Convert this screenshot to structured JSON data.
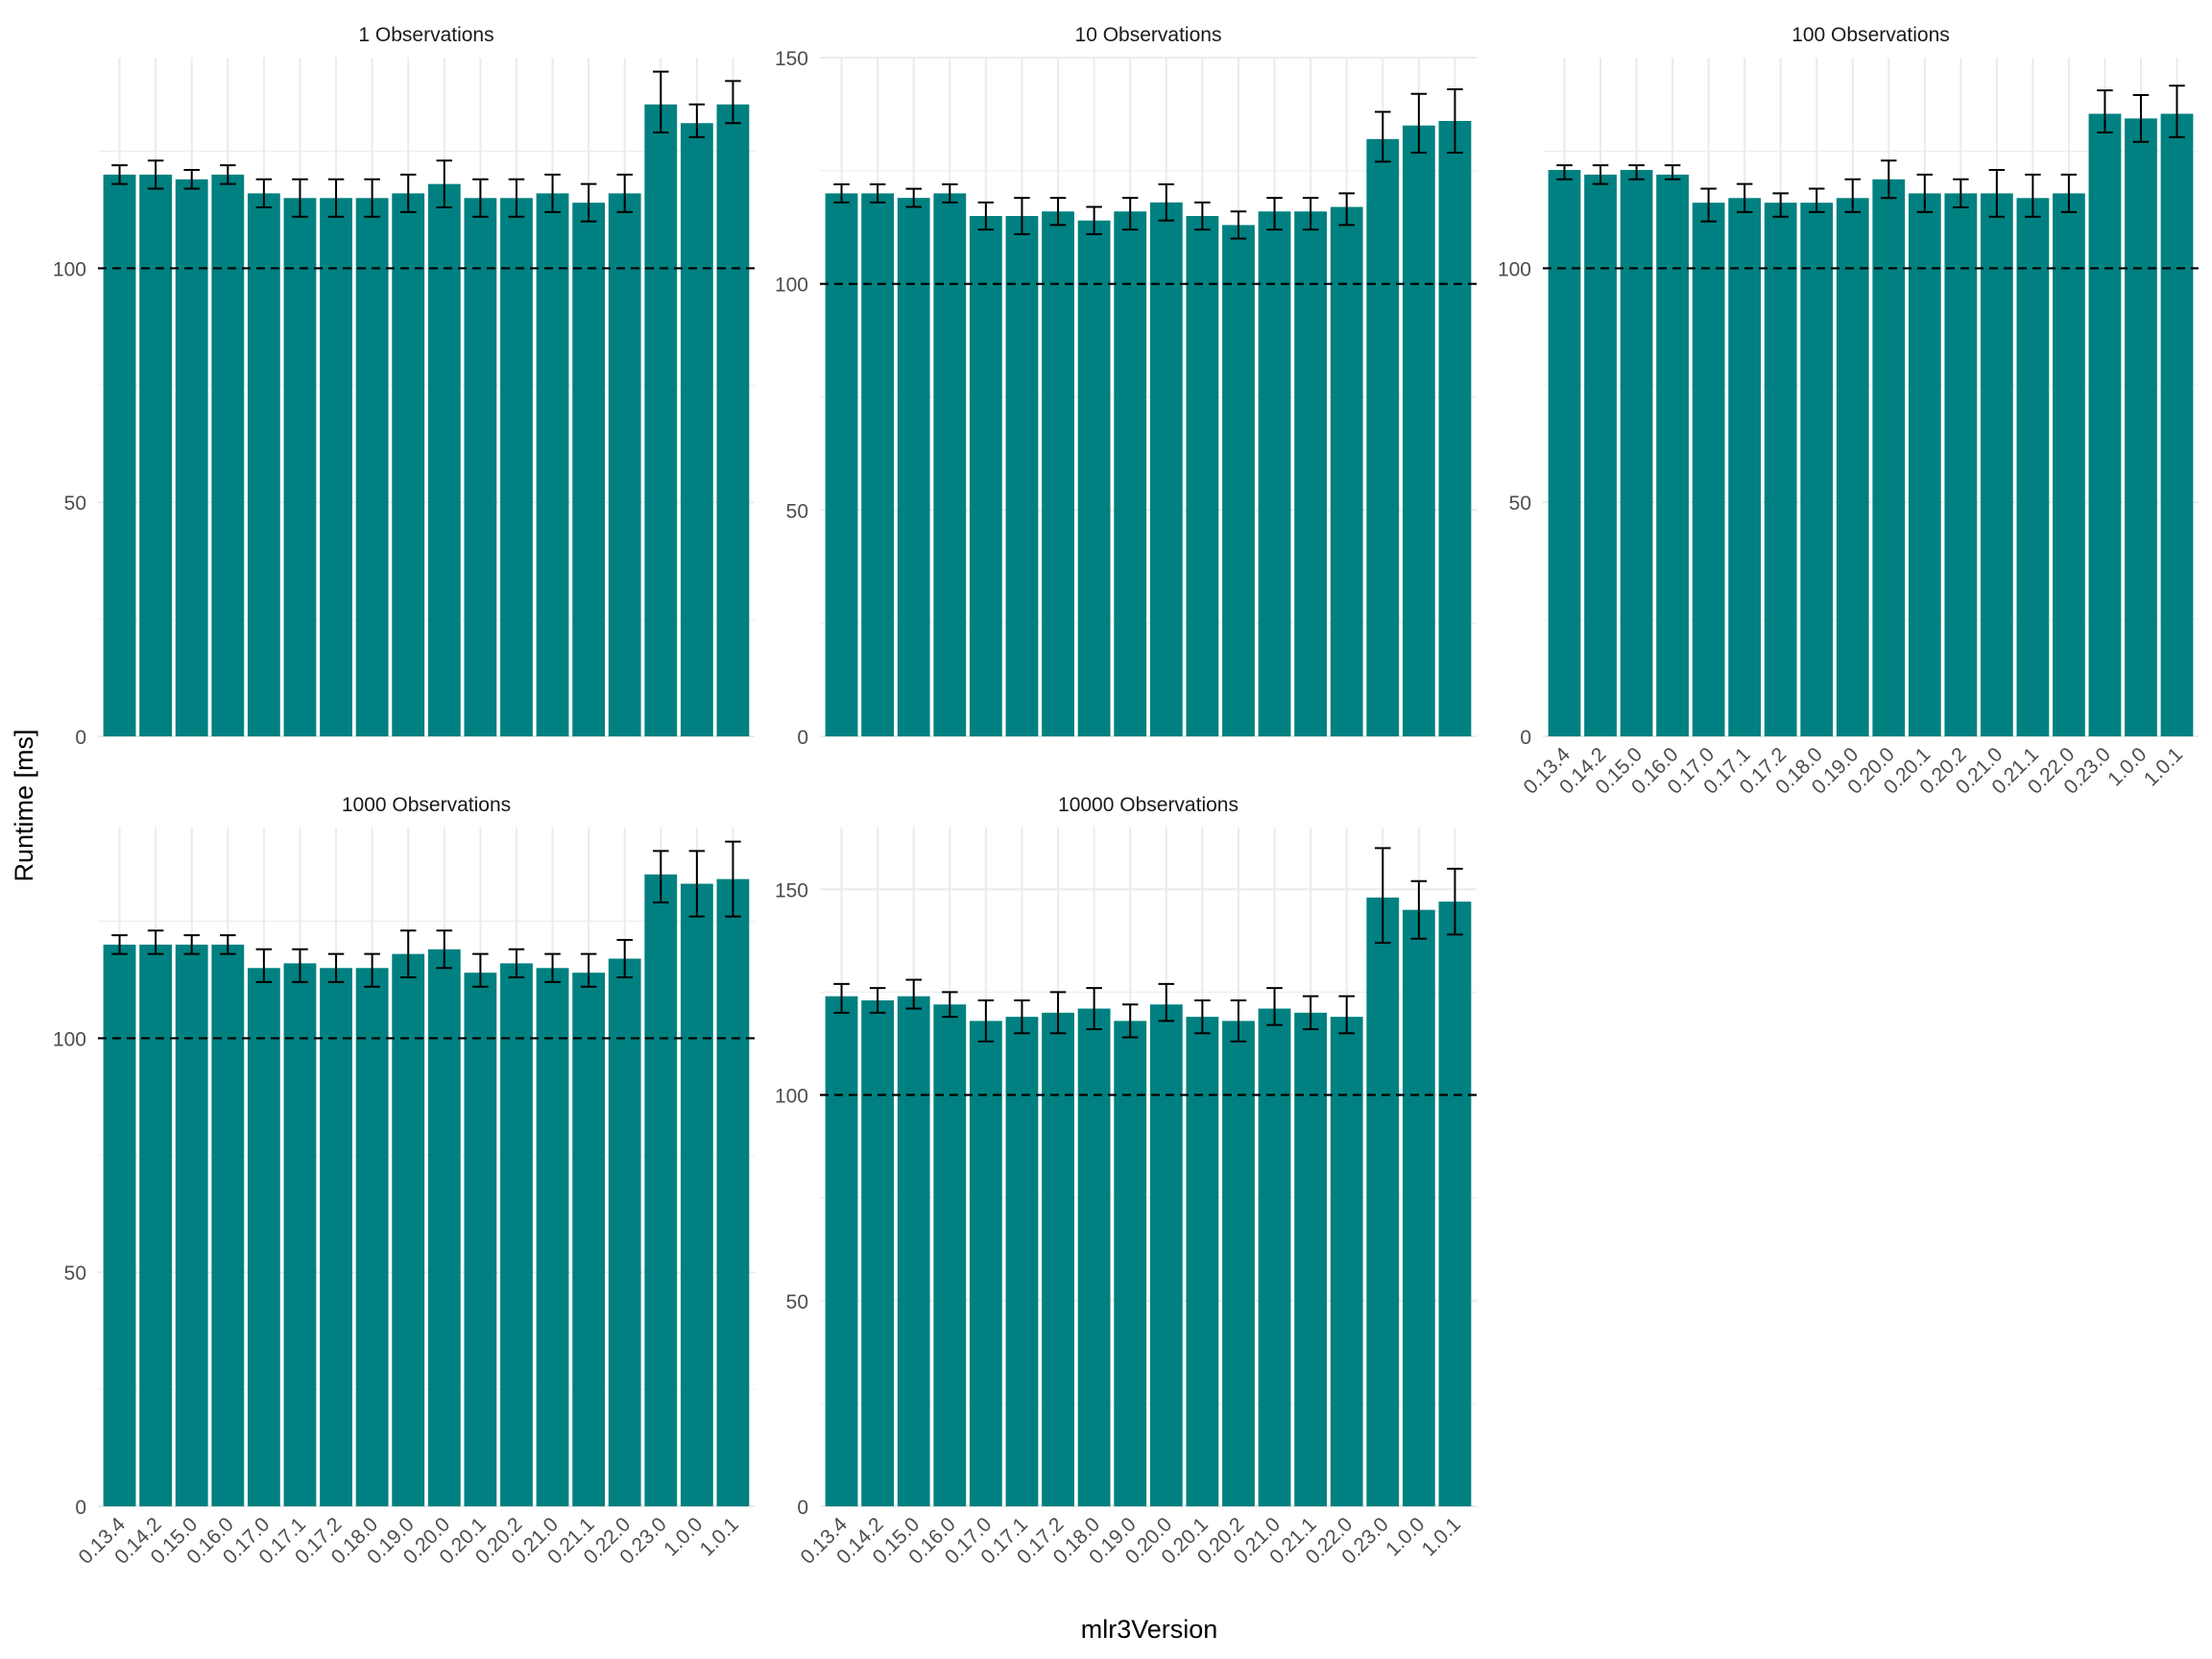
{
  "figure": {
    "ylabel": "Runtime [ms]",
    "xlabel": "mlr3Version",
    "bar_color": "#008080",
    "grid_color": "#EBEBEB",
    "reference_line_color": "#000000"
  },
  "chart_data": [
    {
      "type": "bar",
      "title": "1 Observations",
      "categories": [
        "0.13.4",
        "0.14.2",
        "0.15.0",
        "0.16.0",
        "0.17.0",
        "0.17.1",
        "0.17.2",
        "0.18.0",
        "0.19.0",
        "0.20.0",
        "0.20.1",
        "0.20.2",
        "0.21.0",
        "0.21.1",
        "0.22.0",
        "0.23.0",
        "1.0.0",
        "1.0.1"
      ],
      "values": [
        120,
        120,
        119,
        120,
        116,
        115,
        115,
        115,
        116,
        118,
        115,
        115,
        116,
        114,
        116,
        135,
        131,
        135
      ],
      "error_low": [
        118,
        117,
        117,
        118,
        113,
        111,
        111,
        111,
        112,
        113,
        111,
        111,
        112,
        110,
        112,
        129,
        128,
        131
      ],
      "error_high": [
        122,
        123,
        121,
        122,
        119,
        119,
        119,
        119,
        120,
        123,
        119,
        119,
        120,
        118,
        120,
        142,
        135,
        140
      ],
      "reference_line": 100,
      "ylim": [
        0,
        145
      ],
      "yticks": [
        0,
        50,
        100
      ],
      "show_xticklabels": false
    },
    {
      "type": "bar",
      "title": "10 Observations",
      "categories": [
        "0.13.4",
        "0.14.2",
        "0.15.0",
        "0.16.0",
        "0.17.0",
        "0.17.1",
        "0.17.2",
        "0.18.0",
        "0.19.0",
        "0.20.0",
        "0.20.1",
        "0.20.2",
        "0.21.0",
        "0.21.1",
        "0.22.0",
        "0.23.0",
        "1.0.0",
        "1.0.1"
      ],
      "values": [
        120,
        120,
        119,
        120,
        115,
        115,
        116,
        114,
        116,
        118,
        115,
        113,
        116,
        116,
        117,
        132,
        135,
        136
      ],
      "error_low": [
        118,
        118,
        117,
        118,
        112,
        111,
        113,
        111,
        112,
        114,
        112,
        110,
        112,
        112,
        113,
        127,
        129,
        129
      ],
      "error_high": [
        122,
        122,
        121,
        122,
        118,
        119,
        119,
        117,
        119,
        122,
        118,
        116,
        119,
        119,
        120,
        138,
        142,
        143
      ],
      "reference_line": 100,
      "ylim": [
        0,
        150
      ],
      "yticks": [
        0,
        50,
        100,
        150
      ],
      "show_xticklabels": false
    },
    {
      "type": "bar",
      "title": "100 Observations",
      "categories": [
        "0.13.4",
        "0.14.2",
        "0.15.0",
        "0.16.0",
        "0.17.0",
        "0.17.1",
        "0.17.2",
        "0.18.0",
        "0.19.0",
        "0.20.0",
        "0.20.1",
        "0.20.2",
        "0.21.0",
        "0.21.1",
        "0.22.0",
        "0.23.0",
        "1.0.0",
        "1.0.1"
      ],
      "values": [
        121,
        120,
        121,
        120,
        114,
        115,
        114,
        114,
        115,
        119,
        116,
        116,
        116,
        115,
        116,
        133,
        132,
        133
      ],
      "error_low": [
        119,
        118,
        119,
        119,
        110,
        112,
        111,
        112,
        112,
        115,
        112,
        113,
        111,
        111,
        112,
        129,
        127,
        128
      ],
      "error_high": [
        122,
        122,
        122,
        122,
        117,
        118,
        116,
        117,
        119,
        123,
        120,
        119,
        121,
        120,
        120,
        138,
        137,
        139
      ],
      "reference_line": 100,
      "ylim": [
        0,
        145
      ],
      "yticks": [
        0,
        50,
        100
      ],
      "show_xticklabels": true
    },
    {
      "type": "bar",
      "title": "1000 Observations",
      "categories": [
        "0.13.4",
        "0.14.2",
        "0.15.0",
        "0.16.0",
        "0.17.0",
        "0.17.1",
        "0.17.2",
        "0.18.0",
        "0.19.0",
        "0.20.0",
        "0.20.1",
        "0.20.2",
        "0.21.0",
        "0.21.1",
        "0.22.0",
        "0.23.0",
        "1.0.0",
        "1.0.1"
      ],
      "values": [
        120,
        120,
        120,
        120,
        115,
        116,
        115,
        115,
        118,
        119,
        114,
        116,
        115,
        114,
        117,
        135,
        133,
        134
      ],
      "error_low": [
        118,
        118,
        118,
        118,
        112,
        112,
        112,
        111,
        113,
        115,
        111,
        113,
        112,
        111,
        113,
        129,
        126,
        126
      ],
      "error_high": [
        122,
        123,
        122,
        122,
        119,
        119,
        118,
        118,
        123,
        123,
        118,
        119,
        118,
        118,
        121,
        140,
        140,
        142
      ],
      "reference_line": 100,
      "ylim": [
        0,
        145
      ],
      "yticks": [
        0,
        50,
        100
      ],
      "show_xticklabels": true
    },
    {
      "type": "bar",
      "title": "10000 Observations",
      "categories": [
        "0.13.4",
        "0.14.2",
        "0.15.0",
        "0.16.0",
        "0.17.0",
        "0.17.1",
        "0.17.2",
        "0.18.0",
        "0.19.0",
        "0.20.0",
        "0.20.1",
        "0.20.2",
        "0.21.0",
        "0.21.1",
        "0.22.0",
        "0.23.0",
        "1.0.0",
        "1.0.1"
      ],
      "values": [
        124,
        123,
        124,
        122,
        118,
        119,
        120,
        121,
        118,
        122,
        119,
        118,
        121,
        120,
        119,
        148,
        145,
        147
      ],
      "error_low": [
        120,
        120,
        121,
        119,
        113,
        115,
        115,
        116,
        114,
        118,
        115,
        113,
        117,
        116,
        115,
        137,
        138,
        139
      ],
      "error_high": [
        127,
        126,
        128,
        125,
        123,
        123,
        125,
        126,
        122,
        127,
        123,
        123,
        126,
        124,
        124,
        160,
        152,
        155
      ],
      "reference_line": 100,
      "ylim": [
        0,
        165
      ],
      "yticks": [
        0,
        50,
        100,
        150
      ],
      "show_xticklabels": true
    }
  ]
}
